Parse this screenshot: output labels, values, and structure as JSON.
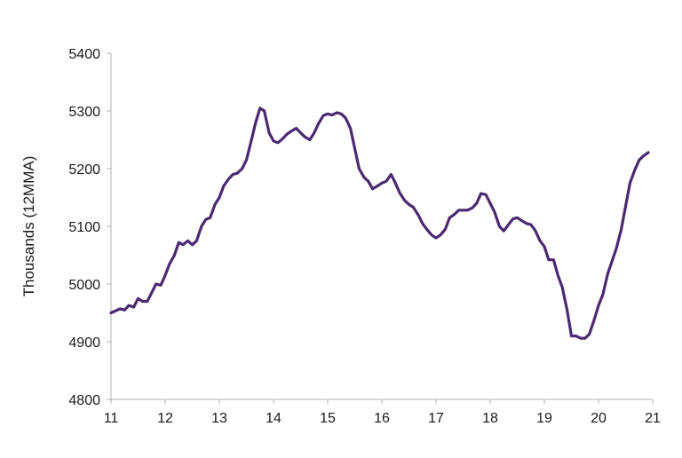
{
  "chart_data": {
    "type": "line",
    "title": "",
    "xlabel": "",
    "ylabel": "Thousands (12MMA)",
    "xlim": [
      11,
      21
    ],
    "ylim": [
      4800,
      5400
    ],
    "x_ticks": [
      11,
      12,
      13,
      14,
      15,
      16,
      17,
      18,
      19,
      20,
      21
    ],
    "y_ticks": [
      4800,
      4900,
      5000,
      5100,
      5200,
      5300,
      5400
    ],
    "grid": false,
    "line_color": "#4b2a72",
    "series": [
      {
        "name": "",
        "x": [
          11.0,
          11.17,
          11.25,
          11.33,
          11.42,
          11.5,
          11.58,
          11.67,
          11.75,
          11.83,
          11.92,
          12.0,
          12.08,
          12.17,
          12.25,
          12.33,
          12.42,
          12.5,
          12.58,
          12.67,
          12.75,
          12.83,
          12.92,
          13.0,
          13.08,
          13.17,
          13.25,
          13.33,
          13.42,
          13.5,
          13.58,
          13.67,
          13.75,
          13.83,
          13.92,
          14.0,
          14.08,
          14.17,
          14.25,
          14.33,
          14.42,
          14.5,
          14.58,
          14.67,
          14.75,
          14.83,
          14.92,
          15.0,
          15.08,
          15.17,
          15.25,
          15.33,
          15.42,
          15.5,
          15.58,
          15.67,
          15.75,
          15.83,
          15.92,
          16.0,
          16.08,
          16.17,
          16.25,
          16.33,
          16.42,
          16.5,
          16.58,
          16.67,
          16.75,
          16.83,
          16.92,
          17.0,
          17.08,
          17.17,
          17.25,
          17.33,
          17.42,
          17.5,
          17.58,
          17.67,
          17.75,
          17.83,
          17.92,
          18.0,
          18.08,
          18.17,
          18.25,
          18.33,
          18.42,
          18.5,
          18.58,
          18.67,
          18.75,
          18.83,
          18.92,
          19.0,
          19.08,
          19.17,
          19.25,
          19.33,
          19.42,
          19.5,
          19.58,
          19.67,
          19.75,
          19.83,
          19.92,
          20.0,
          20.08,
          20.17,
          20.25,
          20.33,
          20.42,
          20.5,
          20.58,
          20.67,
          20.75,
          20.83,
          20.92
        ],
        "values": [
          4950,
          4957,
          4955,
          4963,
          4960,
          4975,
          4970,
          4970,
          4985,
          5000,
          4998,
          5015,
          5035,
          5050,
          5072,
          5068,
          5075,
          5068,
          5075,
          5100,
          5112,
          5115,
          5138,
          5150,
          5170,
          5182,
          5190,
          5192,
          5200,
          5215,
          5245,
          5280,
          5305,
          5300,
          5262,
          5248,
          5245,
          5252,
          5260,
          5265,
          5270,
          5262,
          5255,
          5250,
          5262,
          5278,
          5292,
          5295,
          5293,
          5297,
          5295,
          5288,
          5270,
          5235,
          5200,
          5185,
          5178,
          5165,
          5170,
          5175,
          5178,
          5190,
          5175,
          5158,
          5145,
          5138,
          5133,
          5120,
          5105,
          5095,
          5085,
          5080,
          5085,
          5095,
          5115,
          5120,
          5128,
          5128,
          5128,
          5132,
          5140,
          5157,
          5155,
          5140,
          5125,
          5100,
          5092,
          5102,
          5113,
          5115,
          5110,
          5105,
          5103,
          5093,
          5075,
          5065,
          5042,
          5042,
          5015,
          4995,
          4955,
          4910,
          4910,
          4906,
          4906,
          4913,
          4938,
          4963,
          4982,
          5018,
          5040,
          5062,
          5095,
          5135,
          5175,
          5198,
          5215,
          5222,
          5228
        ]
      }
    ]
  }
}
